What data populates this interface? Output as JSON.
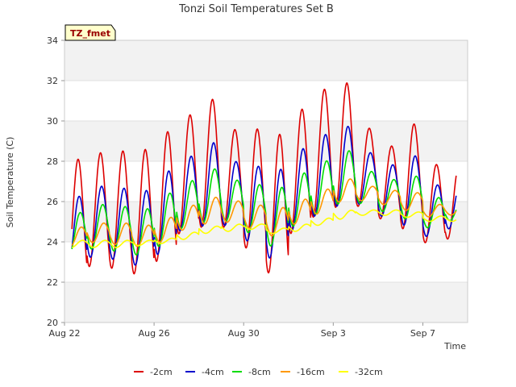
{
  "chart_data": {
    "type": "line",
    "title": "Tonzi Soil Temperatures Set B",
    "xlabel": "Time",
    "ylabel": "Soil Temperature (C)",
    "site_badge": "TZ_fmet",
    "ylim": [
      20,
      34
    ],
    "yticks": [
      20,
      22,
      24,
      26,
      28,
      30,
      32,
      34
    ],
    "xlim": [
      0,
      18
    ],
    "xticks": [
      {
        "x": 0,
        "label": "Aug 22"
      },
      {
        "x": 4,
        "label": "Aug 26"
      },
      {
        "x": 8,
        "label": "Aug 30"
      },
      {
        "x": 12,
        "label": "Sep 3"
      },
      {
        "x": 16,
        "label": "Sep 7"
      }
    ],
    "grid": true,
    "legend_position": "bottom",
    "days": [
      0.5,
      1.5,
      2.5,
      3.5,
      4.5,
      5.5,
      6.5,
      7.5,
      8.5,
      9.5,
      10.5,
      11.5,
      12.5,
      13.5,
      14.5,
      15.5,
      16.5,
      17.5
    ],
    "series": [
      {
        "name": "-2cm",
        "color": "#dd0000",
        "peaks": [
          28.5,
          28.8,
          28.9,
          29.0,
          29.9,
          30.7,
          31.5,
          29.9,
          30.0,
          29.8,
          31.0,
          32.0,
          32.3,
          29.9,
          29.0,
          30.2,
          28.1,
          28.0
        ],
        "troughs": [
          21.8,
          22.4,
          22.3,
          22.0,
          22.6,
          24.0,
          24.3,
          24.4,
          23.3,
          22.0,
          24.0,
          24.8,
          25.3,
          25.5,
          24.9,
          24.3,
          23.7,
          23.9
        ]
      },
      {
        "name": "-4cm",
        "color": "#0000cc",
        "peaks": [
          26.5,
          27.0,
          26.9,
          26.8,
          27.8,
          28.5,
          29.2,
          28.2,
          28.0,
          27.9,
          28.9,
          29.6,
          30.0,
          28.6,
          28.0,
          28.5,
          27.0,
          27.0
        ],
        "troughs": [
          22.5,
          23.0,
          22.9,
          22.6,
          23.1,
          24.3,
          24.5,
          24.6,
          23.8,
          22.9,
          24.3,
          25.0,
          25.5,
          25.7,
          25.1,
          24.6,
          24.1,
          24.5
        ]
      },
      {
        "name": "-8cm",
        "color": "#00dd00",
        "peaks": [
          25.6,
          26.0,
          25.9,
          25.8,
          26.6,
          27.2,
          27.8,
          27.2,
          27.0,
          26.9,
          27.6,
          28.2,
          28.7,
          27.6,
          27.2,
          27.4,
          26.3,
          26.0
        ],
        "troughs": [
          23.2,
          23.5,
          23.4,
          23.2,
          23.6,
          24.5,
          24.8,
          24.9,
          24.3,
          23.6,
          24.6,
          25.2,
          25.7,
          25.8,
          25.4,
          25.0,
          24.6,
          25.0
        ]
      },
      {
        "name": "-16cm",
        "color": "#ff9900",
        "peaks": [
          24.8,
          25.0,
          25.0,
          24.9,
          25.3,
          25.9,
          26.3,
          26.1,
          25.9,
          25.8,
          26.2,
          26.7,
          27.2,
          26.8,
          26.6,
          26.5,
          25.9,
          25.8
        ],
        "troughs": [
          23.7,
          23.9,
          23.8,
          23.7,
          23.9,
          24.5,
          24.8,
          24.9,
          24.6,
          24.2,
          24.8,
          25.3,
          25.9,
          26.0,
          25.8,
          25.5,
          25.2,
          25.3
        ]
      },
      {
        "name": "-32cm",
        "color": "#ffff00",
        "peaks": [
          24.1,
          24.1,
          24.1,
          24.1,
          24.2,
          24.5,
          24.8,
          24.9,
          24.9,
          24.7,
          24.9,
          25.2,
          25.6,
          25.6,
          25.6,
          25.5,
          25.3,
          25.3
        ],
        "troughs": [
          23.7,
          23.7,
          23.7,
          23.8,
          23.9,
          24.1,
          24.4,
          24.5,
          24.6,
          24.4,
          24.5,
          24.8,
          25.1,
          25.3,
          25.3,
          25.2,
          25.0,
          25.0
        ]
      }
    ]
  }
}
